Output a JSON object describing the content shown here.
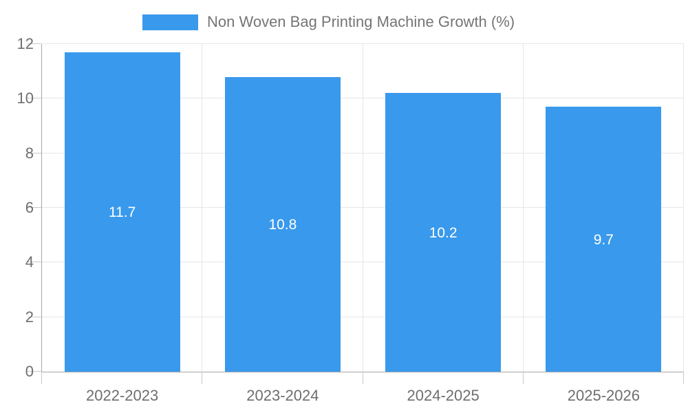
{
  "chart_data": {
    "type": "bar",
    "title": "Non Woven Bag Printing Machine Growth (%)",
    "categories": [
      "2022-2023",
      "2023-2024",
      "2024-2025",
      "2025-2026"
    ],
    "values": [
      11.7,
      10.8,
      10.2,
      9.7
    ],
    "bar_labels": [
      "11.7",
      "10.8",
      "10.2",
      "9.7"
    ],
    "series": [
      {
        "name": "Non Woven Bag Printing Machine Growth (%)",
        "values": [
          11.7,
          10.8,
          10.2,
          9.7
        ]
      }
    ],
    "xlabel": "",
    "ylabel": "",
    "ylim": [
      0,
      12
    ],
    "y_ticks": [
      0,
      2,
      4,
      6,
      8,
      10,
      12
    ],
    "grid": true,
    "legend_position": "top-center"
  },
  "legend": {
    "label": "Non Woven Bag Printing Machine Growth (%)"
  },
  "colors": {
    "bar": "#3999ec",
    "bar_value_text": "#ffffff",
    "axis_line": "#a6a6a6",
    "grid_line": "#e6e6e6",
    "tick_line": "#c9c9c9",
    "tick_label": "#6e6e6e",
    "legend_text": "#757575",
    "background": "#ffffff"
  }
}
